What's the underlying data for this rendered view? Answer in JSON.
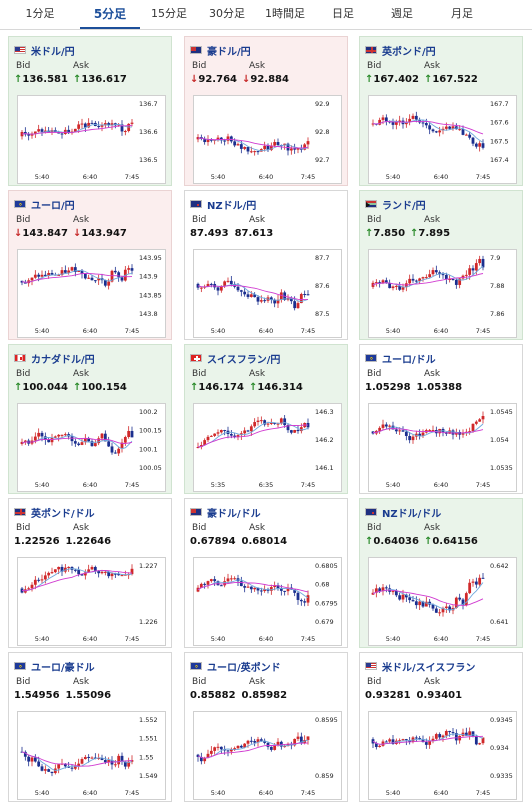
{
  "tabs": [
    "1分足",
    "5分足",
    "15分足",
    "30分足",
    "1時間足",
    "日足",
    "週足",
    "月足"
  ],
  "active_tab": 1,
  "labels": {
    "bid": "Bid",
    "ask": "Ask"
  },
  "cards": [
    {
      "pair": "米ドル/円",
      "flag": "us",
      "trend": "up",
      "bid": "136.581",
      "ask": "136.617",
      "yticks": [
        "136.7",
        "136.6",
        "136.5"
      ],
      "xticks": [
        "5:40",
        "6:40",
        "7:45"
      ]
    },
    {
      "pair": "豪ドル/円",
      "flag": "au",
      "trend": "down",
      "bid": "92.764",
      "ask": "92.884",
      "yticks": [
        "92.9",
        "92.8",
        "92.7"
      ],
      "xticks": [
        "5:40",
        "6:40",
        "7:45"
      ]
    },
    {
      "pair": "英ポンド/円",
      "flag": "gb",
      "trend": "up",
      "bid": "167.402",
      "ask": "167.522",
      "yticks": [
        "167.7",
        "167.6",
        "167.5",
        "167.4"
      ],
      "xticks": [
        "5:40",
        "6:40",
        "7:45"
      ]
    },
    {
      "pair": "ユーロ/円",
      "flag": "eu",
      "trend": "down",
      "bid": "143.847",
      "ask": "143.947",
      "yticks": [
        "143.95",
        "143.9",
        "143.85",
        "143.8"
      ],
      "xticks": [
        "5:40",
        "6:40",
        "7:45"
      ]
    },
    {
      "pair": "NZドル/円",
      "flag": "nz",
      "trend": "none",
      "bid": "87.493",
      "ask": "87.613",
      "yticks": [
        "87.7",
        "87.6",
        "87.5"
      ],
      "xticks": [
        "5:40",
        "6:40",
        "7:45"
      ]
    },
    {
      "pair": "ランド/円",
      "flag": "za",
      "trend": "up",
      "bid": "7.850",
      "ask": "7.895",
      "yticks": [
        "7.9",
        "7.88",
        "7.86"
      ],
      "xticks": [
        "5:40",
        "6:40",
        "7:45"
      ]
    },
    {
      "pair": "カナダドル/円",
      "flag": "ca",
      "trend": "up",
      "bid": "100.044",
      "ask": "100.154",
      "yticks": [
        "100.2",
        "100.15",
        "100.1",
        "100.05"
      ],
      "xticks": [
        "5:40",
        "6:40",
        "7:45"
      ]
    },
    {
      "pair": "スイスフラン/円",
      "flag": "ch",
      "trend": "up",
      "bid": "146.174",
      "ask": "146.314",
      "yticks": [
        "146.3",
        "146.2",
        "146.1"
      ],
      "xticks": [
        "5:35",
        "6:35",
        "7:45"
      ]
    },
    {
      "pair": "ユーロ/ドル",
      "flag": "eu",
      "trend": "none",
      "bid": "1.05298",
      "ask": "1.05388",
      "yticks": [
        "1.0545",
        "1.054",
        "1.0535"
      ],
      "xticks": [
        "5:40",
        "6:40",
        "7:45"
      ]
    },
    {
      "pair": "英ポンド/ドル",
      "flag": "gb",
      "trend": "none",
      "bid": "1.22526",
      "ask": "1.22646",
      "yticks": [
        "1.227",
        "1.226"
      ],
      "xticks": [
        "5:40",
        "6:40",
        "7:45"
      ]
    },
    {
      "pair": "豪ドル/ドル",
      "flag": "au",
      "trend": "none",
      "bid": "0.67894",
      "ask": "0.68014",
      "yticks": [
        "0.6805",
        "0.68",
        "0.6795",
        "0.679"
      ],
      "xticks": [
        "5:40",
        "6:40",
        "7:45"
      ]
    },
    {
      "pair": "NZドル/ドル",
      "flag": "nz",
      "trend": "up",
      "bid": "0.64036",
      "ask": "0.64156",
      "yticks": [
        "0.642",
        "0.641"
      ],
      "xticks": [
        "5:40",
        "6:40",
        "7:45"
      ]
    },
    {
      "pair": "ユーロ/豪ドル",
      "flag": "eu",
      "trend": "none",
      "bid": "1.54956",
      "ask": "1.55096",
      "yticks": [
        "1.552",
        "1.551",
        "1.55",
        "1.549"
      ],
      "xticks": [
        "5:40",
        "6:40",
        "7:45"
      ]
    },
    {
      "pair": "ユーロ/英ポンド",
      "flag": "eu",
      "trend": "none",
      "bid": "0.85882",
      "ask": "0.85982",
      "yticks": [
        "0.8595",
        "0.859"
      ],
      "xticks": [
        "5:40",
        "6:40",
        "7:45"
      ]
    },
    {
      "pair": "米ドル/スイスフラン",
      "flag": "us",
      "trend": "none",
      "bid": "0.93281",
      "ask": "0.93401",
      "yticks": [
        "0.9345",
        "0.934",
        "0.9335"
      ],
      "xticks": [
        "5:40",
        "6:40",
        "7:45"
      ]
    }
  ],
  "colors": {
    "up_candle": "#d0282a",
    "down_candle": "#1b2f8f",
    "ma_short": "#6fa8dc",
    "ma_long": "#d03ad0",
    "up_bg": "#eaf4ea",
    "down_bg": "#fbeeee",
    "up_arrow": "#2a8a2a",
    "down_arrow": "#c62828"
  }
}
